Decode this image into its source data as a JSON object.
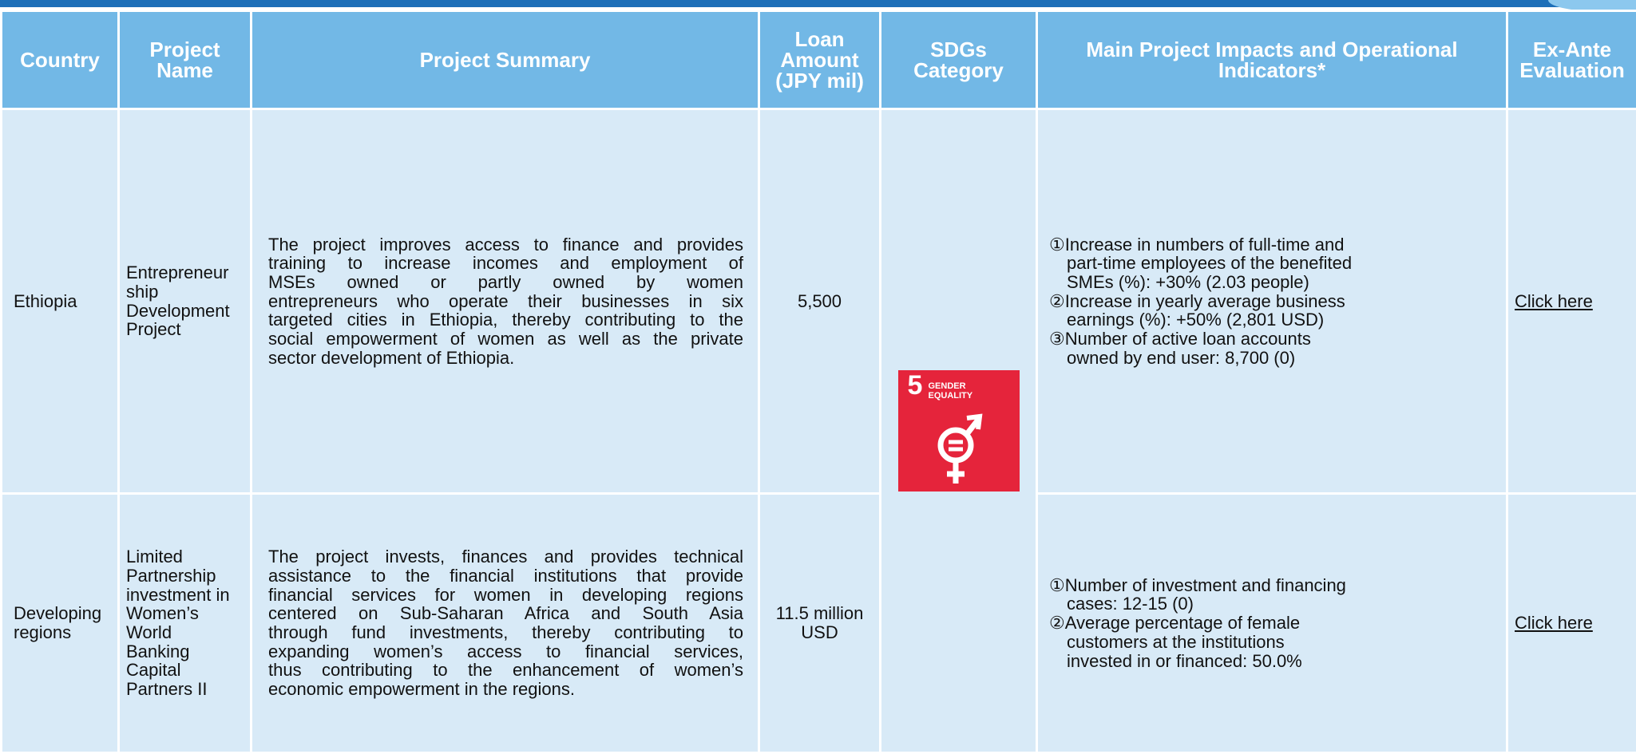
{
  "header": [
    [
      "Country"
    ],
    [
      "Project",
      "Name"
    ],
    [
      "Project Summary"
    ],
    [
      "Loan",
      "Amount",
      "(JPY mil)"
    ],
    [
      "SDGs",
      "Category"
    ],
    [
      "Main Project Impacts and Operational",
      "Indicators*"
    ],
    [
      "Ex-Ante",
      "Evaluation"
    ]
  ],
  "sdg": {
    "number": "5",
    "label": [
      "GENDER",
      "EQUALITY"
    ]
  },
  "rows": [
    {
      "country": [
        "Ethiopia"
      ],
      "project_name": [
        "Entrepreneur",
        "ship",
        "Development",
        "Project"
      ],
      "summary": [
        "The project improves access to finance and provides",
        "training to increase incomes and employment of",
        "MSEs owned or partly owned by women",
        "entrepreneurs who operate their businesses in six",
        "targeted cities in Ethiopia, thereby contributing to the",
        "social empowerment of women as well as the private",
        "sector development of Ethiopia."
      ],
      "loan": [
        "5,500"
      ],
      "impacts": [
        [
          "①Increase in numbers of full-time and",
          "part-time employees of the benefited",
          "SMEs (%): +30% (2.03 people)"
        ],
        [
          "②Increase in yearly average business",
          "earnings (%): +50% (2,801 USD)"
        ],
        [
          "③Number of active loan accounts",
          "owned by end user: 8,700 (0)"
        ]
      ],
      "link": "Click here"
    },
    {
      "country": [
        "Developing",
        "regions"
      ],
      "project_name": [
        "Limited",
        "Partnership",
        "investment in",
        "Women’s",
        "World",
        "Banking",
        "Capital",
        "Partners II"
      ],
      "summary": [
        "The project invests, finances and provides technical",
        "assistance to the financial institutions that provide",
        "financial services for women in developing regions",
        "centered on Sub-Saharan Africa and South Asia",
        "through fund investments, thereby contributing to",
        "expanding women’s access to financial services,",
        "thus contributing to the enhancement of women’s",
        "economic empowerment in the regions."
      ],
      "loan": [
        "11.5 million",
        "USD"
      ],
      "impacts": [
        [
          "①Number of investment and financing",
          "cases: 12-15 (0)"
        ],
        [
          "②Average percentage of female",
          "customers at the institutions",
          "invested in or financed: 50.0%"
        ]
      ],
      "link": "Click here"
    }
  ]
}
